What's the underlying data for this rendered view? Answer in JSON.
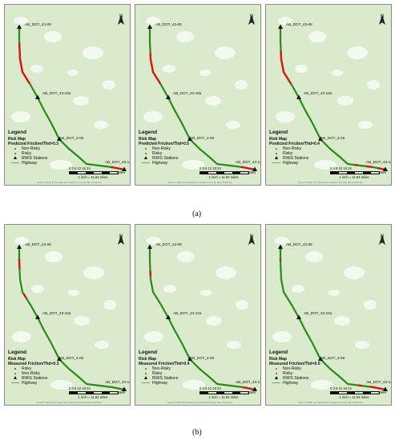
{
  "captions": [
    "(a)",
    "(b)"
  ],
  "station_labels": {
    "s1": "AB_DOT_43-08",
    "s2": "AB_DOT_43-10a",
    "s3": "AB_DOT_3-06",
    "s4": "AB_DOT_43-14"
  },
  "legend": {
    "title": "Legend",
    "risk_map": "Risk Map",
    "stations": "RWIS Stations",
    "highway": "Highway"
  },
  "scale": {
    "ticks": "0 3 6    12    18    24",
    "unit": "Miles",
    "inch": "1 inch = 11.84 miles"
  },
  "credit": "Sources: HERE, Esri Canada, Esri Canada Community Map Contributors",
  "north": "N",
  "colors": {
    "safe": "#2a8a18",
    "risky": "#d81818",
    "highway": "#6aa84f",
    "land": "#d9ebcc"
  },
  "panels": [
    {
      "subtitle": "Predicted Friction/Thd=0.3",
      "item1": "Non-Risky",
      "item2": "Risky"
    },
    {
      "subtitle": "Predicted Friction/Thd=0.5",
      "item1": "Non-Risky",
      "item2": "Risky"
    },
    {
      "subtitle": "Predicted Friction/Thd=0.4",
      "item1": "Non-Risky",
      "item2": "Risky"
    },
    {
      "subtitle": "Measured Friction/Thd=0.3",
      "item1": "Risky",
      "item2": "Non-Risky"
    },
    {
      "subtitle": "Measured Friction/Thd=0.4",
      "item1": "Non-Risky",
      "item2": "Risky"
    },
    {
      "subtitle": "Measured Friction/Thd=0.5",
      "item1": "Non-Risky",
      "item2": "Risky"
    }
  ]
}
